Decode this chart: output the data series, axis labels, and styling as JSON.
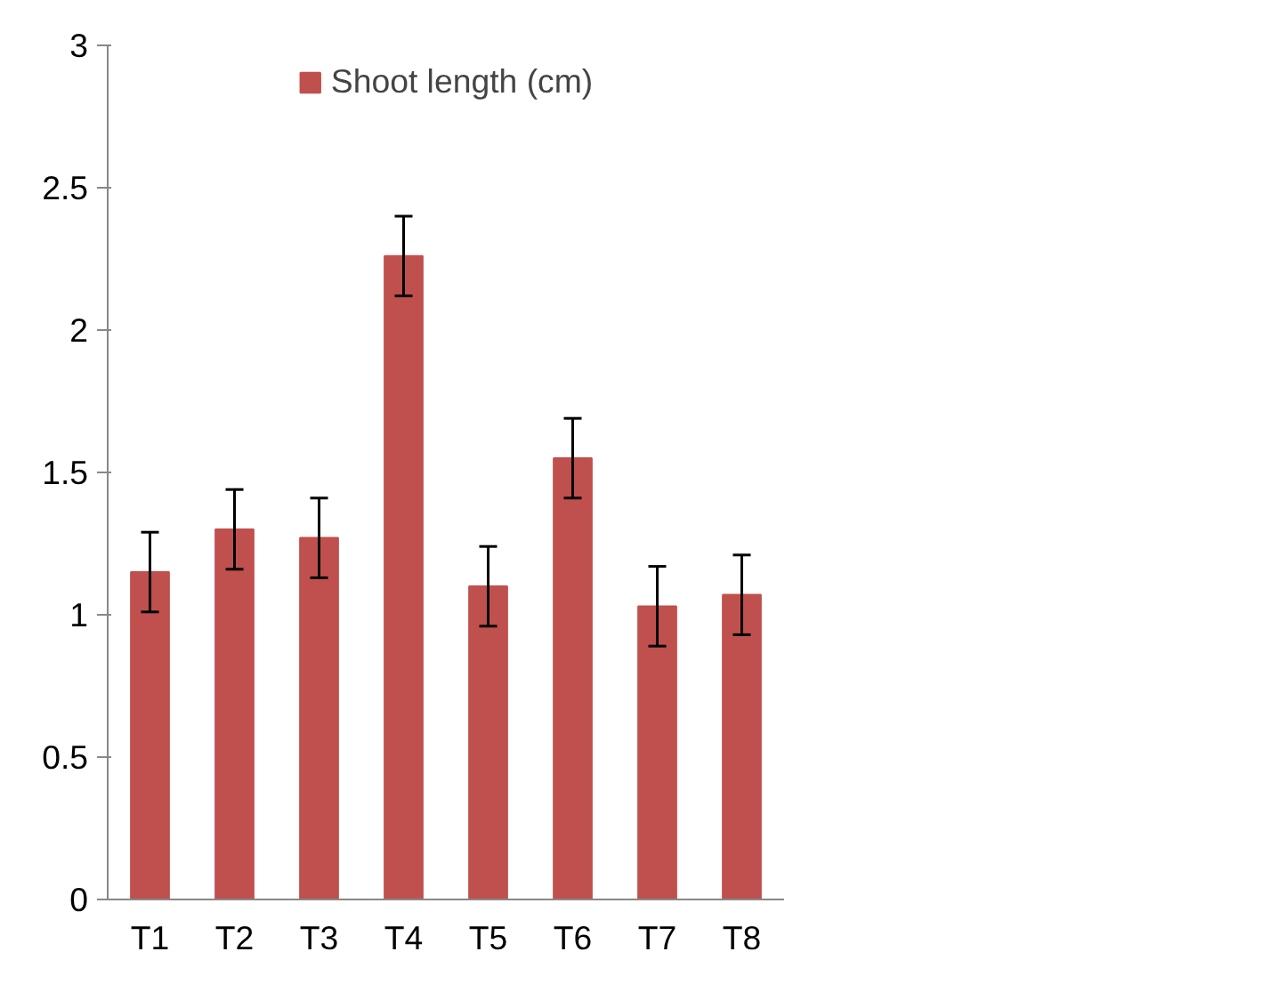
{
  "chart_data": {
    "type": "bar",
    "categories": [
      "T1",
      "T2",
      "T3",
      "T4",
      "T5",
      "T6",
      "T7",
      "T8"
    ],
    "series": [
      {
        "name": "Shoot length (cm)",
        "color": "#c0504d",
        "values": [
          1.15,
          1.3,
          1.27,
          2.26,
          1.1,
          1.55,
          1.03,
          1.07
        ],
        "errors": [
          0.14,
          0.14,
          0.14,
          0.14,
          0.14,
          0.14,
          0.14,
          0.14
        ]
      }
    ],
    "ylim": [
      0,
      3
    ],
    "yticks": [
      0,
      0.5,
      1,
      1.5,
      2,
      2.5,
      3
    ],
    "grid": false,
    "legend": "top"
  }
}
